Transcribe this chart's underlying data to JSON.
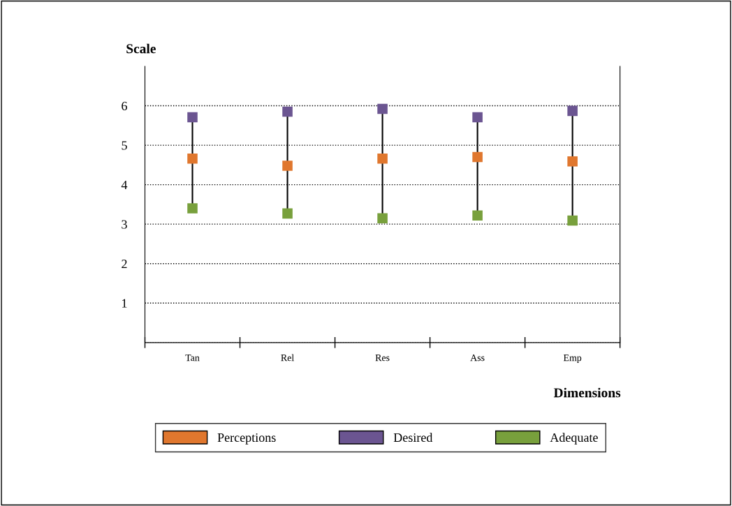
{
  "chart_data": {
    "type": "scatter",
    "categories": [
      "Tan",
      "Rel",
      "Res",
      "Ass",
      "Emp"
    ],
    "series": [
      {
        "name": "Perceptions",
        "color": "#e0772e",
        "values": [
          4.66,
          4.48,
          4.66,
          4.7,
          4.59
        ]
      },
      {
        "name": "Desired",
        "color": "#6b5591",
        "values": [
          5.71,
          5.85,
          5.92,
          5.71,
          5.87
        ]
      },
      {
        "name": "Adequate",
        "color": "#78a03c",
        "values": [
          3.4,
          3.27,
          3.15,
          3.22,
          3.09
        ]
      }
    ],
    "ylabel": "Scale",
    "xlabel": "Dimensions",
    "ylim": [
      0,
      7
    ],
    "yticks": [
      {
        "value": 0,
        "label": null
      },
      1,
      2,
      3,
      4,
      5,
      6
    ],
    "grid": "y",
    "legend": "bottom",
    "marker": "square"
  }
}
